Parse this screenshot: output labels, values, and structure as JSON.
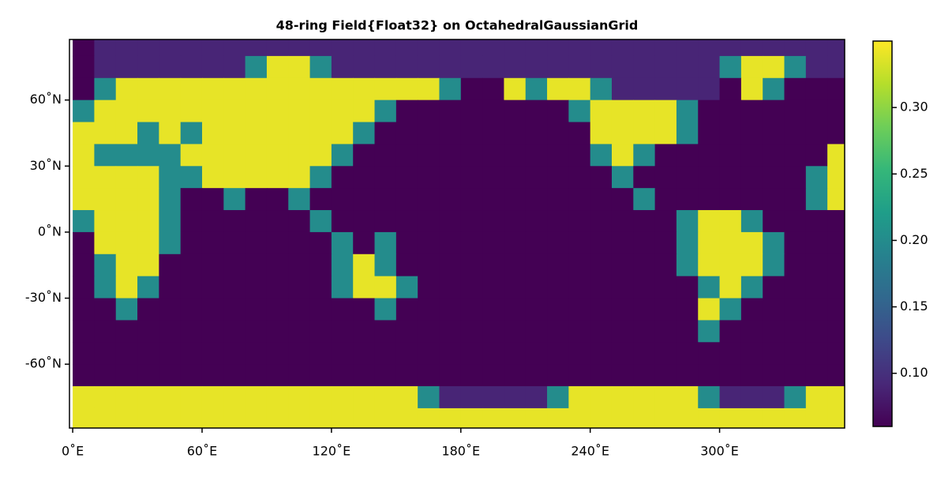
{
  "chart_data": {
    "type": "heatmap",
    "title": "48-ring Field{Float32} on OctahedralGaussianGrid",
    "colormap": "viridis",
    "x": [
      5,
      15,
      25,
      35,
      45,
      55,
      65,
      75,
      85,
      95,
      105,
      115,
      125,
      135,
      145,
      155,
      165,
      175,
      185,
      195,
      205,
      215,
      225,
      235,
      245,
      255,
      265,
      275,
      285,
      295,
      305,
      315,
      325,
      335,
      345,
      355
    ],
    "y": [
      85,
      75,
      65,
      55,
      45,
      35,
      25,
      15,
      5,
      -5,
      -15,
      -25,
      -35,
      -45,
      -55,
      -65,
      -75,
      -85
    ],
    "values": [
      [
        0.06,
        0.09,
        0.09,
        0.09,
        0.09,
        0.09,
        0.09,
        0.09,
        0.09,
        0.09,
        0.09,
        0.09,
        0.09,
        0.09,
        0.09,
        0.09,
        0.09,
        0.09,
        0.09,
        0.09,
        0.09,
        0.09,
        0.09,
        0.09,
        0.09,
        0.09,
        0.09,
        0.09,
        0.09,
        0.09,
        0.09,
        0.09,
        0.09,
        0.09,
        0.09,
        0.09
      ],
      [
        0.06,
        0.09,
        0.09,
        0.09,
        0.09,
        0.09,
        0.09,
        0.09,
        0.2,
        0.34,
        0.34,
        0.2,
        0.09,
        0.09,
        0.09,
        0.09,
        0.09,
        0.09,
        0.09,
        0.09,
        0.09,
        0.09,
        0.09,
        0.09,
        0.09,
        0.09,
        0.09,
        0.09,
        0.09,
        0.09,
        0.2,
        0.34,
        0.34,
        0.2,
        0.09,
        0.09
      ],
      [
        0.06,
        0.2,
        0.34,
        0.34,
        0.34,
        0.34,
        0.34,
        0.34,
        0.34,
        0.34,
        0.34,
        0.34,
        0.34,
        0.34,
        0.34,
        0.34,
        0.34,
        0.2,
        0.06,
        0.06,
        0.34,
        0.2,
        0.34,
        0.34,
        0.2,
        0.09,
        0.09,
        0.09,
        0.09,
        0.09,
        0.06,
        0.34,
        0.2,
        0.06,
        0.06,
        0.06
      ],
      [
        0.2,
        0.34,
        0.34,
        0.34,
        0.34,
        0.34,
        0.34,
        0.34,
        0.34,
        0.34,
        0.34,
        0.34,
        0.34,
        0.34,
        0.2,
        0.06,
        0.06,
        0.06,
        0.06,
        0.06,
        0.06,
        0.06,
        0.06,
        0.2,
        0.34,
        0.34,
        0.34,
        0.34,
        0.2,
        0.06,
        0.06,
        0.06,
        0.06,
        0.06,
        0.06,
        0.06
      ],
      [
        0.34,
        0.34,
        0.34,
        0.2,
        0.34,
        0.2,
        0.34,
        0.34,
        0.34,
        0.34,
        0.34,
        0.34,
        0.34,
        0.2,
        0.06,
        0.06,
        0.06,
        0.06,
        0.06,
        0.06,
        0.06,
        0.06,
        0.06,
        0.06,
        0.34,
        0.34,
        0.34,
        0.34,
        0.2,
        0.06,
        0.06,
        0.06,
        0.06,
        0.06,
        0.06,
        0.06
      ],
      [
        0.34,
        0.2,
        0.2,
        0.2,
        0.2,
        0.34,
        0.34,
        0.34,
        0.34,
        0.34,
        0.34,
        0.34,
        0.2,
        0.06,
        0.06,
        0.06,
        0.06,
        0.06,
        0.06,
        0.06,
        0.06,
        0.06,
        0.06,
        0.06,
        0.2,
        0.34,
        0.2,
        0.06,
        0.06,
        0.06,
        0.06,
        0.06,
        0.06,
        0.06,
        0.06,
        0.34
      ],
      [
        0.34,
        0.34,
        0.34,
        0.34,
        0.2,
        0.2,
        0.34,
        0.34,
        0.34,
        0.34,
        0.34,
        0.2,
        0.06,
        0.06,
        0.06,
        0.06,
        0.06,
        0.06,
        0.06,
        0.06,
        0.06,
        0.06,
        0.06,
        0.06,
        0.06,
        0.2,
        0.06,
        0.06,
        0.06,
        0.06,
        0.06,
        0.06,
        0.06,
        0.06,
        0.2,
        0.34
      ],
      [
        0.34,
        0.34,
        0.34,
        0.34,
        0.2,
        0.06,
        0.06,
        0.2,
        0.06,
        0.06,
        0.2,
        0.06,
        0.06,
        0.06,
        0.06,
        0.06,
        0.06,
        0.06,
        0.06,
        0.06,
        0.06,
        0.06,
        0.06,
        0.06,
        0.06,
        0.06,
        0.2,
        0.06,
        0.06,
        0.06,
        0.06,
        0.06,
        0.06,
        0.06,
        0.2,
        0.34
      ],
      [
        0.2,
        0.34,
        0.34,
        0.34,
        0.2,
        0.06,
        0.06,
        0.06,
        0.06,
        0.06,
        0.06,
        0.2,
        0.06,
        0.06,
        0.06,
        0.06,
        0.06,
        0.06,
        0.06,
        0.06,
        0.06,
        0.06,
        0.06,
        0.06,
        0.06,
        0.06,
        0.06,
        0.06,
        0.2,
        0.34,
        0.34,
        0.2,
        0.06,
        0.06,
        0.06,
        0.06
      ],
      [
        0.06,
        0.34,
        0.34,
        0.34,
        0.2,
        0.06,
        0.06,
        0.06,
        0.06,
        0.06,
        0.06,
        0.06,
        0.2,
        0.06,
        0.2,
        0.06,
        0.06,
        0.06,
        0.06,
        0.06,
        0.06,
        0.06,
        0.06,
        0.06,
        0.06,
        0.06,
        0.06,
        0.06,
        0.2,
        0.34,
        0.34,
        0.34,
        0.2,
        0.06,
        0.06,
        0.06
      ],
      [
        0.06,
        0.2,
        0.34,
        0.34,
        0.06,
        0.06,
        0.06,
        0.06,
        0.06,
        0.06,
        0.06,
        0.06,
        0.2,
        0.34,
        0.2,
        0.06,
        0.06,
        0.06,
        0.06,
        0.06,
        0.06,
        0.06,
        0.06,
        0.06,
        0.06,
        0.06,
        0.06,
        0.06,
        0.2,
        0.34,
        0.34,
        0.34,
        0.2,
        0.06,
        0.06,
        0.06
      ],
      [
        0.06,
        0.2,
        0.34,
        0.2,
        0.06,
        0.06,
        0.06,
        0.06,
        0.06,
        0.06,
        0.06,
        0.06,
        0.2,
        0.34,
        0.34,
        0.2,
        0.06,
        0.06,
        0.06,
        0.06,
        0.06,
        0.06,
        0.06,
        0.06,
        0.06,
        0.06,
        0.06,
        0.06,
        0.06,
        0.2,
        0.34,
        0.2,
        0.06,
        0.06,
        0.06,
        0.06
      ],
      [
        0.06,
        0.06,
        0.2,
        0.06,
        0.06,
        0.06,
        0.06,
        0.06,
        0.06,
        0.06,
        0.06,
        0.06,
        0.06,
        0.06,
        0.2,
        0.06,
        0.06,
        0.06,
        0.06,
        0.06,
        0.06,
        0.06,
        0.06,
        0.06,
        0.06,
        0.06,
        0.06,
        0.06,
        0.06,
        0.34,
        0.2,
        0.06,
        0.06,
        0.06,
        0.06,
        0.06
      ],
      [
        0.06,
        0.06,
        0.06,
        0.06,
        0.06,
        0.06,
        0.06,
        0.06,
        0.06,
        0.06,
        0.06,
        0.06,
        0.06,
        0.06,
        0.06,
        0.06,
        0.06,
        0.06,
        0.06,
        0.06,
        0.06,
        0.06,
        0.06,
        0.06,
        0.06,
        0.06,
        0.06,
        0.06,
        0.06,
        0.2,
        0.06,
        0.06,
        0.06,
        0.06,
        0.06,
        0.06
      ],
      [
        0.06,
        0.06,
        0.06,
        0.06,
        0.06,
        0.06,
        0.06,
        0.06,
        0.06,
        0.06,
        0.06,
        0.06,
        0.06,
        0.06,
        0.06,
        0.06,
        0.06,
        0.06,
        0.06,
        0.06,
        0.06,
        0.06,
        0.06,
        0.06,
        0.06,
        0.06,
        0.06,
        0.06,
        0.06,
        0.06,
        0.06,
        0.06,
        0.06,
        0.06,
        0.06,
        0.06
      ],
      [
        0.06,
        0.06,
        0.06,
        0.06,
        0.06,
        0.06,
        0.06,
        0.06,
        0.06,
        0.06,
        0.06,
        0.06,
        0.06,
        0.06,
        0.06,
        0.06,
        0.06,
        0.06,
        0.06,
        0.06,
        0.06,
        0.06,
        0.06,
        0.06,
        0.06,
        0.06,
        0.06,
        0.06,
        0.06,
        0.06,
        0.06,
        0.06,
        0.06,
        0.06,
        0.06,
        0.06
      ],
      [
        0.34,
        0.34,
        0.34,
        0.34,
        0.34,
        0.34,
        0.34,
        0.34,
        0.34,
        0.34,
        0.34,
        0.34,
        0.34,
        0.34,
        0.34,
        0.34,
        0.2,
        0.09,
        0.09,
        0.09,
        0.09,
        0.09,
        0.2,
        0.34,
        0.34,
        0.34,
        0.34,
        0.34,
        0.34,
        0.2,
        0.09,
        0.09,
        0.09,
        0.2,
        0.34,
        0.34
      ],
      [
        0.34,
        0.34,
        0.34,
        0.34,
        0.34,
        0.34,
        0.34,
        0.34,
        0.34,
        0.34,
        0.34,
        0.34,
        0.34,
        0.34,
        0.34,
        0.34,
        0.34,
        0.34,
        0.34,
        0.34,
        0.34,
        0.34,
        0.34,
        0.34,
        0.34,
        0.34,
        0.34,
        0.34,
        0.34,
        0.34,
        0.34,
        0.34,
        0.34,
        0.34,
        0.34,
        0.34
      ]
    ],
    "xlim": [
      -1.5,
      358
    ],
    "ylim": [
      -89,
      87.5
    ],
    "clim": [
      0.06,
      0.35
    ],
    "xticks": [
      {
        "value": 0,
        "label": "0˚E"
      },
      {
        "value": 60,
        "label": "60˚E"
      },
      {
        "value": 120,
        "label": "120˚E"
      },
      {
        "value": 180,
        "label": "180˚E"
      },
      {
        "value": 240,
        "label": "240˚E"
      },
      {
        "value": 300,
        "label": "300˚E"
      }
    ],
    "yticks": [
      {
        "value": 60,
        "label": "60˚N"
      },
      {
        "value": 30,
        "label": "30˚N"
      },
      {
        "value": 0,
        "label": "0˚N"
      },
      {
        "value": -30,
        "label": "-30˚N"
      },
      {
        "value": -60,
        "label": "-60˚N"
      }
    ],
    "cticks": [
      {
        "value": 0.1,
        "label": "0.10"
      },
      {
        "value": 0.15,
        "label": "0.15"
      },
      {
        "value": 0.2,
        "label": "0.20"
      },
      {
        "value": 0.25,
        "label": "0.25"
      },
      {
        "value": 0.3,
        "label": "0.30"
      }
    ]
  }
}
